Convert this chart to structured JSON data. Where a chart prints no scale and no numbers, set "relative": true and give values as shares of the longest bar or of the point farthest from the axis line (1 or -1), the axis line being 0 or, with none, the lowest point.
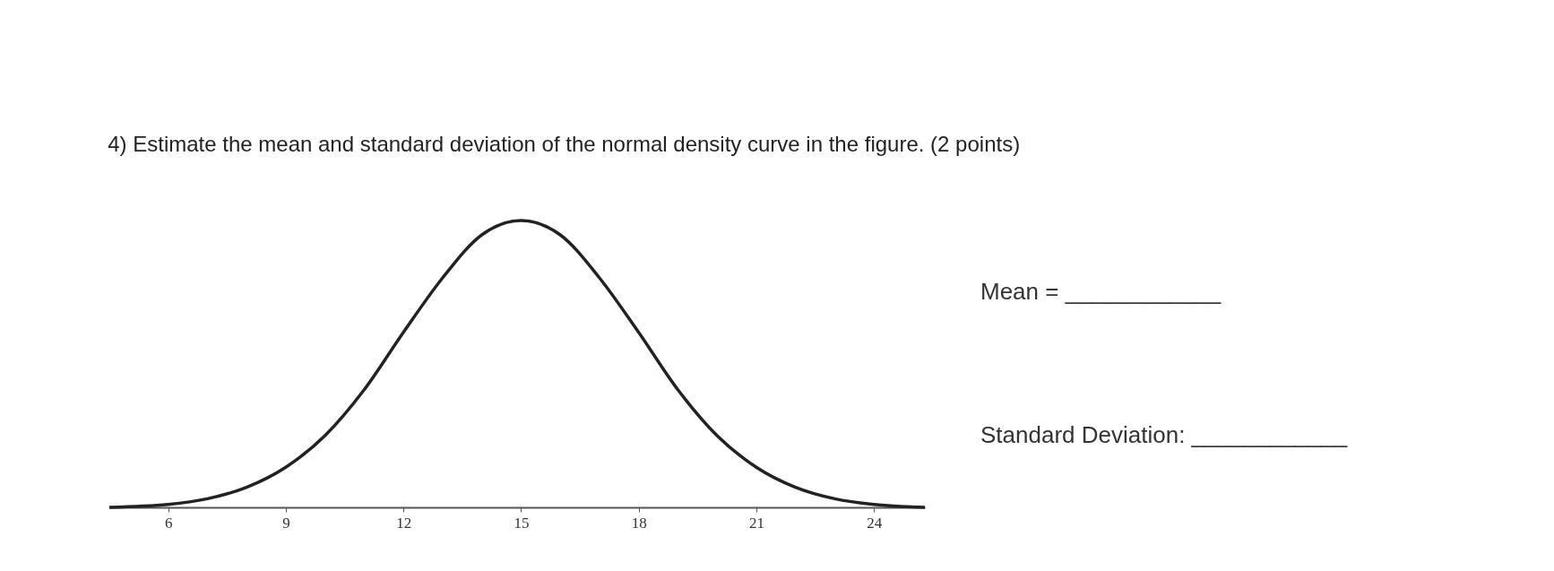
{
  "chart_data": {
    "type": "line",
    "title": "4) Estimate the mean and standard deviation of the normal density curve in the figure. (2 points)",
    "relative": true,
    "x": [
      4.5,
      6,
      7,
      8,
      9,
      10,
      11,
      12,
      13,
      14,
      15,
      16,
      17,
      18,
      19,
      20,
      21,
      22,
      23,
      24,
      25.3
    ],
    "series": [
      {
        "color": "#222222",
        "values": [
          0.0,
          0.01,
          0.03,
          0.07,
          0.14,
          0.25,
          0.41,
          0.61,
          0.8,
          0.95,
          1.0,
          0.95,
          0.8,
          0.61,
          0.41,
          0.25,
          0.14,
          0.07,
          0.03,
          0.01,
          0.0
        ]
      }
    ],
    "xlim": [
      4.5,
      25.3
    ],
    "xticks": [
      6,
      9,
      12,
      15,
      18,
      21,
      24
    ],
    "grid": false,
    "legend": false,
    "marker": "none",
    "line_style": "solid",
    "annotations": [
      "Mean = ____________",
      "Standard Deviation: ____________"
    ]
  }
}
